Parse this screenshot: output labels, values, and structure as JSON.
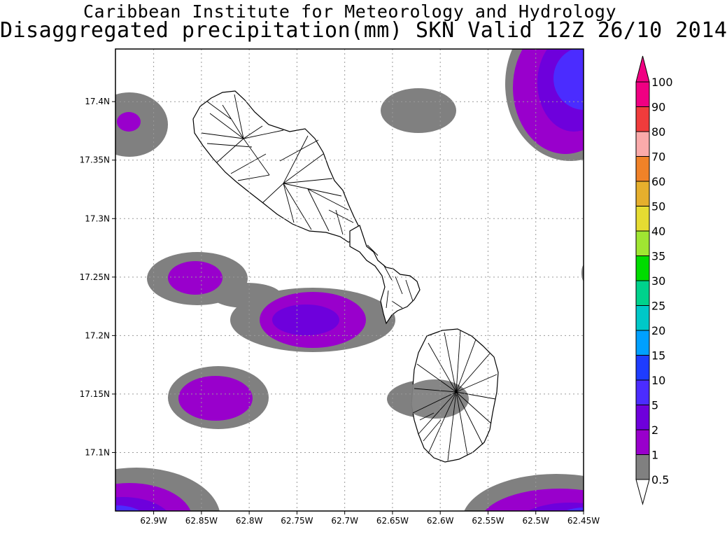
{
  "title": "Caribbean Institute for Meteorology and Hydrology",
  "subtitle": "Disaggregated precipitation(mm) SKN Valid 12Z 26/10 2014",
  "map": {
    "lon_range": [
      -62.94,
      -62.45
    ],
    "lat_range": [
      17.05,
      17.445
    ],
    "x_ticks": [
      {
        "value": -62.9,
        "label": "62.9W"
      },
      {
        "value": -62.85,
        "label": "62.85W"
      },
      {
        "value": -62.8,
        "label": "62.8W"
      },
      {
        "value": -62.75,
        "label": "62.75W"
      },
      {
        "value": -62.7,
        "label": "62.7W"
      },
      {
        "value": -62.65,
        "label": "62.65W"
      },
      {
        "value": -62.6,
        "label": "62.6W"
      },
      {
        "value": -62.55,
        "label": "62.55W"
      },
      {
        "value": -62.5,
        "label": "62.5W"
      },
      {
        "value": -62.45,
        "label": "62.45W"
      }
    ],
    "y_ticks": [
      {
        "value": 17.1,
        "label": "17.1N"
      },
      {
        "value": 17.15,
        "label": "17.15N"
      },
      {
        "value": 17.2,
        "label": "17.2N"
      },
      {
        "value": 17.25,
        "label": "17.25N"
      },
      {
        "value": 17.3,
        "label": "17.3N"
      },
      {
        "value": 17.35,
        "label": "17.35N"
      },
      {
        "value": 17.4,
        "label": "17.4N"
      }
    ],
    "grid": true
  },
  "legend": {
    "levels": [
      {
        "label": "0.5",
        "color": "#ffffff"
      },
      {
        "label": "1",
        "color": "#808080"
      },
      {
        "label": "2",
        "color": "#9900cc"
      },
      {
        "label": "5",
        "color": "#6e00dc"
      },
      {
        "label": "10",
        "color": "#4b2cff"
      },
      {
        "label": "15",
        "color": "#1e3cff"
      },
      {
        "label": "20",
        "color": "#00a0ff"
      },
      {
        "label": "25",
        "color": "#00c8c8"
      },
      {
        "label": "30",
        "color": "#00d28c"
      },
      {
        "label": "35",
        "color": "#00dc00"
      },
      {
        "label": "40",
        "color": "#a0e632"
      },
      {
        "label": "50",
        "color": "#e6dc32"
      },
      {
        "label": "60",
        "color": "#e6af2d"
      },
      {
        "label": "70",
        "color": "#f08228"
      },
      {
        "label": "80",
        "color": "#faaaaa"
      },
      {
        "label": "90",
        "color": "#f03c3c"
      },
      {
        "label": "100",
        "color": "#f00082"
      }
    ],
    "top_arrow_color": "#f00082"
  },
  "colors": {
    "gray": "#808080",
    "purple": "#9900cc",
    "violet": "#6e00dc",
    "blue": "#4b2cff",
    "land_fill": "#ffffff",
    "coast": "#000000"
  }
}
